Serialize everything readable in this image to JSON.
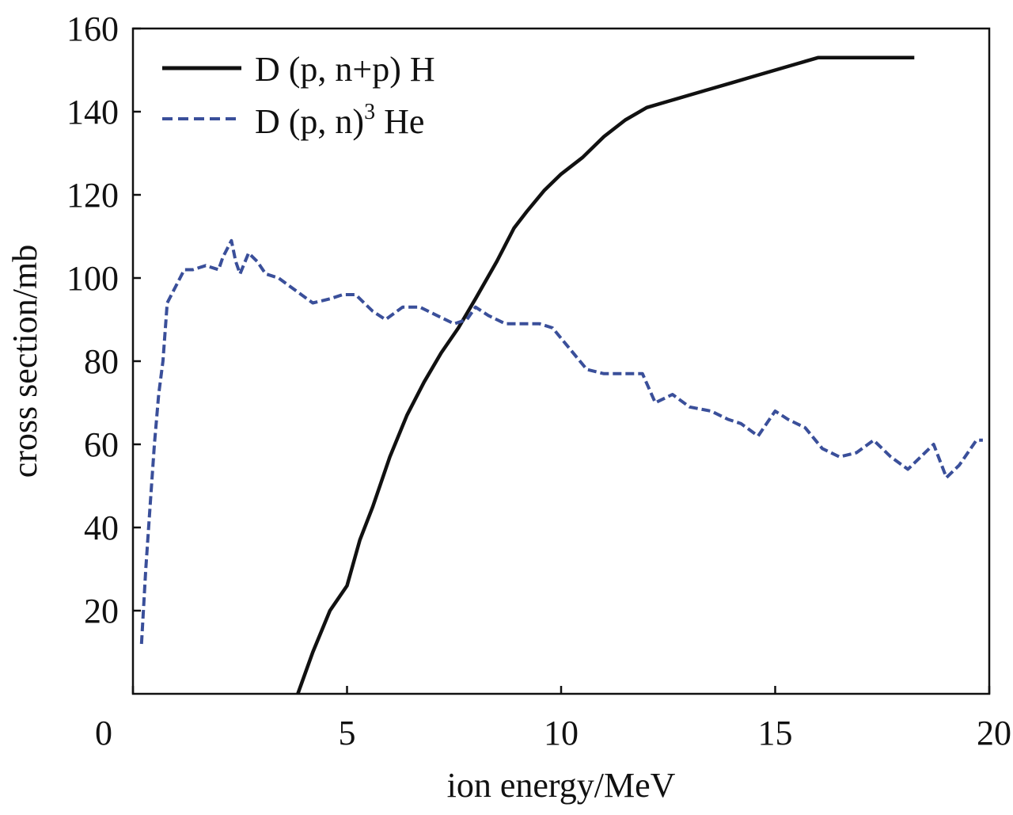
{
  "chart_data": {
    "type": "line",
    "xlabel": "ion energy/MeV",
    "ylabel": "cross section/mb",
    "xlim": [
      0,
      20
    ],
    "ylim": [
      0,
      160
    ],
    "xticks": [
      "0",
      "5",
      "10",
      "15",
      "20"
    ],
    "yticks": [
      "20",
      "40",
      "60",
      "80",
      "100",
      "120",
      "140",
      "160"
    ],
    "grid": false,
    "legend_position": "top-left",
    "series": [
      {
        "name": "D (p, n+p) H",
        "legend_parts": {
          "main": "D (p, n+p) H",
          "sup": "",
          "tail": ""
        },
        "color": "#111111",
        "style": "solid",
        "x": [
          3.85,
          4.2,
          4.6,
          5.0,
          5.3,
          5.6,
          6.0,
          6.4,
          6.8,
          7.2,
          7.6,
          8.0,
          8.5,
          8.9,
          9.2,
          9.6,
          10.0,
          10.5,
          11.0,
          11.5,
          12.0,
          12.5,
          13.0,
          13.5,
          14.0,
          14.5,
          15.0,
          15.5,
          16.0,
          16.5,
          17.0,
          17.5,
          18.0,
          18.25
        ],
        "y": [
          0,
          10,
          20,
          26,
          37,
          45,
          57,
          67,
          75,
          82,
          88,
          95,
          104,
          112,
          116,
          121,
          125,
          129,
          134,
          138,
          141,
          142.5,
          144,
          145.5,
          147,
          148.5,
          150,
          151.5,
          153,
          153,
          153,
          153,
          153,
          153
        ]
      },
      {
        "name": "D (p, n)3 He",
        "legend_parts": {
          "main": "D (p, n)",
          "sup": "3",
          "tail": " He"
        },
        "color": "#3a4f9a",
        "style": "dashed",
        "x": [
          0.2,
          0.3,
          0.4,
          0.5,
          0.6,
          0.7,
          0.8,
          1.0,
          1.2,
          1.4,
          1.7,
          2.0,
          2.1,
          2.3,
          2.4,
          2.5,
          2.7,
          2.9,
          3.1,
          3.4,
          3.8,
          4.2,
          4.6,
          4.9,
          5.2,
          5.6,
          5.9,
          6.3,
          6.7,
          7.1,
          7.5,
          7.8,
          8.0,
          8.3,
          8.7,
          9.1,
          9.5,
          9.8,
          10.2,
          10.6,
          11.0,
          11.5,
          11.9,
          12.2,
          12.6,
          13.0,
          13.5,
          13.9,
          14.2,
          14.6,
          15.0,
          15.3,
          15.7,
          16.1,
          16.5,
          16.9,
          17.3,
          17.7,
          18.1,
          18.4,
          18.7,
          19.0,
          19.3,
          19.5,
          19.7,
          19.85
        ],
        "y": [
          12,
          30,
          45,
          60,
          72,
          80,
          94,
          98,
          102,
          102,
          103,
          102,
          105,
          109,
          104,
          101,
          106,
          104,
          101,
          100,
          97,
          94,
          95,
          96,
          96,
          92,
          90,
          93,
          93,
          91,
          89,
          90,
          93,
          91,
          89,
          89,
          89,
          88,
          83,
          78,
          77,
          77,
          77,
          70,
          72,
          69,
          68,
          66,
          65,
          62,
          68,
          66,
          64,
          59,
          57,
          58,
          61,
          57,
          54,
          57,
          60,
          52,
          55,
          58,
          61,
          61
        ]
      }
    ]
  }
}
